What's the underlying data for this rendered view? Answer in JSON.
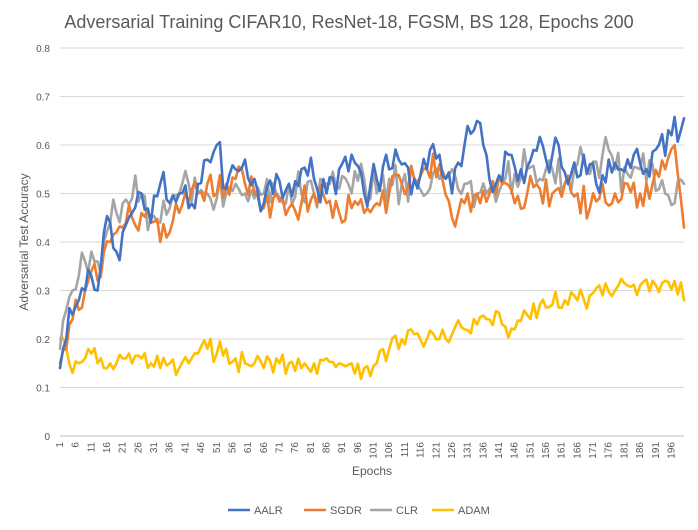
{
  "chart_data": {
    "type": "line",
    "title": "Adversarial Training CIFAR10, ResNet-18, FGSM, BS 128, Epochs 200",
    "xlabel": "Epochs",
    "ylabel": "Adversarial Test Accuracy",
    "ylim": [
      0,
      0.8
    ],
    "yticks": [
      "0",
      "0.1",
      "0.2",
      "0.3",
      "0.4",
      "0.5",
      "0.6",
      "0.7",
      "0.8"
    ],
    "xticks": [
      "1",
      "6",
      "11",
      "16",
      "21",
      "26",
      "31",
      "36",
      "41",
      "46",
      "51",
      "56",
      "61",
      "66",
      "71",
      "76",
      "81",
      "86",
      "91",
      "96",
      "101",
      "106",
      "111",
      "116",
      "121",
      "126",
      "131",
      "136",
      "141",
      "146",
      "151",
      "156",
      "161",
      "166",
      "171",
      "176",
      "181",
      "186",
      "191",
      "196"
    ],
    "x_range": [
      1,
      200
    ],
    "grid": "horizontal",
    "legend_position": "bottom",
    "series": [
      {
        "name": "AALR",
        "color": "#4472C4",
        "anchors": [
          [
            1,
            0.14
          ],
          [
            3,
            0.2
          ],
          [
            5,
            0.25
          ],
          [
            7,
            0.28
          ],
          [
            9,
            0.3
          ],
          [
            11,
            0.33
          ],
          [
            13,
            0.3
          ],
          [
            15,
            0.42
          ],
          [
            17,
            0.44
          ],
          [
            19,
            0.38
          ],
          [
            21,
            0.42
          ],
          [
            24,
            0.46
          ],
          [
            27,
            0.5
          ],
          [
            30,
            0.44
          ],
          [
            33,
            0.52
          ],
          [
            36,
            0.48
          ],
          [
            39,
            0.5
          ],
          [
            42,
            0.47
          ],
          [
            45,
            0.52
          ],
          [
            48,
            0.57
          ],
          [
            51,
            0.6
          ],
          [
            54,
            0.51
          ],
          [
            57,
            0.55
          ],
          [
            60,
            0.57
          ],
          [
            63,
            0.53
          ],
          [
            66,
            0.48
          ],
          [
            70,
            0.54
          ],
          [
            74,
            0.52
          ],
          [
            78,
            0.55
          ],
          [
            82,
            0.53
          ],
          [
            86,
            0.5
          ],
          [
            90,
            0.55
          ],
          [
            94,
            0.58
          ],
          [
            98,
            0.5
          ],
          [
            102,
            0.53
          ],
          [
            106,
            0.55
          ],
          [
            110,
            0.56
          ],
          [
            114,
            0.53
          ],
          [
            118,
            0.55
          ],
          [
            122,
            0.58
          ],
          [
            126,
            0.5
          ],
          [
            130,
            0.6
          ],
          [
            133,
            0.63
          ],
          [
            136,
            0.6
          ],
          [
            140,
            0.52
          ],
          [
            144,
            0.58
          ],
          [
            148,
            0.55
          ],
          [
            152,
            0.59
          ],
          [
            156,
            0.57
          ],
          [
            160,
            0.6
          ],
          [
            164,
            0.54
          ],
          [
            168,
            0.58
          ],
          [
            172,
            0.52
          ],
          [
            176,
            0.57
          ],
          [
            180,
            0.55
          ],
          [
            184,
            0.58
          ],
          [
            188,
            0.55
          ],
          [
            192,
            0.6
          ],
          [
            196,
            0.62
          ],
          [
            200,
            0.655
          ]
        ],
        "noise": 0.04
      },
      {
        "name": "SGDR",
        "color": "#ED7D31",
        "anchors": [
          [
            1,
            0.15
          ],
          [
            3,
            0.18
          ],
          [
            5,
            0.24
          ],
          [
            7,
            0.26
          ],
          [
            9,
            0.3
          ],
          [
            11,
            0.34
          ],
          [
            13,
            0.32
          ],
          [
            15,
            0.38
          ],
          [
            17,
            0.4
          ],
          [
            19,
            0.42
          ],
          [
            21,
            0.43
          ],
          [
            24,
            0.45
          ],
          [
            27,
            0.46
          ],
          [
            30,
            0.44
          ],
          [
            33,
            0.4
          ],
          [
            36,
            0.42
          ],
          [
            39,
            0.46
          ],
          [
            42,
            0.48
          ],
          [
            45,
            0.5
          ],
          [
            48,
            0.52
          ],
          [
            51,
            0.5
          ],
          [
            54,
            0.52
          ],
          [
            57,
            0.53
          ],
          [
            60,
            0.52
          ],
          [
            63,
            0.5
          ],
          [
            66,
            0.47
          ],
          [
            70,
            0.5
          ],
          [
            74,
            0.47
          ],
          [
            78,
            0.48
          ],
          [
            82,
            0.5
          ],
          [
            86,
            0.48
          ],
          [
            90,
            0.46
          ],
          [
            94,
            0.47
          ],
          [
            98,
            0.46
          ],
          [
            102,
            0.48
          ],
          [
            106,
            0.5
          ],
          [
            110,
            0.52
          ],
          [
            114,
            0.53
          ],
          [
            118,
            0.55
          ],
          [
            122,
            0.56
          ],
          [
            126,
            0.45
          ],
          [
            130,
            0.48
          ],
          [
            134,
            0.5
          ],
          [
            138,
            0.5
          ],
          [
            142,
            0.52
          ],
          [
            146,
            0.48
          ],
          [
            150,
            0.5
          ],
          [
            154,
            0.51
          ],
          [
            158,
            0.5
          ],
          [
            162,
            0.52
          ],
          [
            166,
            0.5
          ],
          [
            170,
            0.47
          ],
          [
            174,
            0.52
          ],
          [
            178,
            0.5
          ],
          [
            182,
            0.52
          ],
          [
            186,
            0.5
          ],
          [
            190,
            0.52
          ],
          [
            194,
            0.55
          ],
          [
            197,
            0.6
          ],
          [
            200,
            0.43
          ]
        ],
        "noise": 0.035
      },
      {
        "name": "CLR",
        "color": "#A5A5A5",
        "anchors": [
          [
            1,
            0.18
          ],
          [
            3,
            0.26
          ],
          [
            5,
            0.3
          ],
          [
            7,
            0.33
          ],
          [
            9,
            0.36
          ],
          [
            11,
            0.38
          ],
          [
            13,
            0.36
          ],
          [
            15,
            0.4
          ],
          [
            17,
            0.44
          ],
          [
            19,
            0.46
          ],
          [
            21,
            0.48
          ],
          [
            24,
            0.49
          ],
          [
            27,
            0.5
          ],
          [
            30,
            0.45
          ],
          [
            33,
            0.44
          ],
          [
            36,
            0.47
          ],
          [
            39,
            0.5
          ],
          [
            42,
            0.52
          ],
          [
            45,
            0.5
          ],
          [
            48,
            0.5
          ],
          [
            51,
            0.49
          ],
          [
            54,
            0.5
          ],
          [
            57,
            0.52
          ],
          [
            60,
            0.5
          ],
          [
            63,
            0.49
          ],
          [
            66,
            0.5
          ],
          [
            70,
            0.5
          ],
          [
            74,
            0.52
          ],
          [
            78,
            0.5
          ],
          [
            82,
            0.5
          ],
          [
            86,
            0.52
          ],
          [
            90,
            0.51
          ],
          [
            94,
            0.5
          ],
          [
            98,
            0.53
          ],
          [
            102,
            0.5
          ],
          [
            106,
            0.53
          ],
          [
            110,
            0.52
          ],
          [
            114,
            0.53
          ],
          [
            118,
            0.5
          ],
          [
            122,
            0.53
          ],
          [
            126,
            0.55
          ],
          [
            130,
            0.52
          ],
          [
            134,
            0.5
          ],
          [
            138,
            0.51
          ],
          [
            142,
            0.52
          ],
          [
            146,
            0.54
          ],
          [
            150,
            0.55
          ],
          [
            154,
            0.53
          ],
          [
            158,
            0.55
          ],
          [
            162,
            0.52
          ],
          [
            166,
            0.56
          ],
          [
            170,
            0.54
          ],
          [
            174,
            0.58
          ],
          [
            178,
            0.55
          ],
          [
            182,
            0.54
          ],
          [
            186,
            0.55
          ],
          [
            190,
            0.56
          ],
          [
            194,
            0.5
          ],
          [
            197,
            0.48
          ],
          [
            200,
            0.52
          ]
        ],
        "noise": 0.045
      },
      {
        "name": "ADAM",
        "color": "#FFC000",
        "anchors": [
          [
            1,
            0.2
          ],
          [
            3,
            0.18
          ],
          [
            5,
            0.13
          ],
          [
            7,
            0.15
          ],
          [
            9,
            0.16
          ],
          [
            11,
            0.17
          ],
          [
            13,
            0.15
          ],
          [
            15,
            0.14
          ],
          [
            17,
            0.15
          ],
          [
            19,
            0.15
          ],
          [
            21,
            0.16
          ],
          [
            24,
            0.15
          ],
          [
            27,
            0.16
          ],
          [
            30,
            0.15
          ],
          [
            33,
            0.14
          ],
          [
            36,
            0.15
          ],
          [
            39,
            0.14
          ],
          [
            42,
            0.15
          ],
          [
            45,
            0.17
          ],
          [
            48,
            0.18
          ],
          [
            51,
            0.17
          ],
          [
            54,
            0.18
          ],
          [
            57,
            0.16
          ],
          [
            60,
            0.15
          ],
          [
            63,
            0.15
          ],
          [
            66,
            0.14
          ],
          [
            70,
            0.16
          ],
          [
            74,
            0.15
          ],
          [
            78,
            0.14
          ],
          [
            82,
            0.15
          ],
          [
            86,
            0.16
          ],
          [
            90,
            0.15
          ],
          [
            94,
            0.15
          ],
          [
            98,
            0.14
          ],
          [
            102,
            0.15
          ],
          [
            106,
            0.18
          ],
          [
            110,
            0.2
          ],
          [
            114,
            0.21
          ],
          [
            118,
            0.2
          ],
          [
            122,
            0.2
          ],
          [
            126,
            0.21
          ],
          [
            130,
            0.22
          ],
          [
            134,
            0.23
          ],
          [
            138,
            0.24
          ],
          [
            142,
            0.23
          ],
          [
            146,
            0.22
          ],
          [
            150,
            0.25
          ],
          [
            154,
            0.27
          ],
          [
            158,
            0.27
          ],
          [
            162,
            0.28
          ],
          [
            166,
            0.28
          ],
          [
            170,
            0.29
          ],
          [
            174,
            0.29
          ],
          [
            178,
            0.3
          ],
          [
            182,
            0.31
          ],
          [
            186,
            0.31
          ],
          [
            190,
            0.32
          ],
          [
            194,
            0.32
          ],
          [
            197,
            0.32
          ],
          [
            200,
            0.28
          ]
        ],
        "noise": 0.025
      }
    ]
  }
}
